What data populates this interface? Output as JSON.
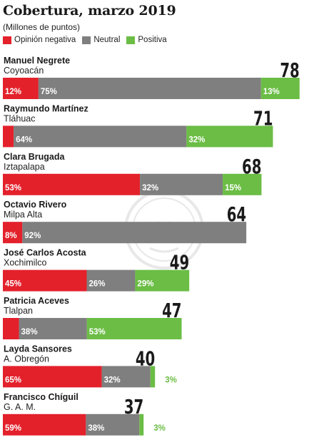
{
  "title": "Cobertura, marzo 2019",
  "subtitle": "(Millones de puntos)",
  "legend": [
    {
      "label": "Opinión negativa",
      "color": "#e3212b"
    },
    {
      "label": "Neutral",
      "color": "#7f7f7f"
    },
    {
      "label": "Positiva",
      "color": "#6bbd45"
    }
  ],
  "chart_data": {
    "type": "bar",
    "orientation": "horizontal",
    "stacked": true,
    "unit": "%",
    "categories": [
      {
        "name": "Manuel Negrete",
        "place": "Coyoacán",
        "total": 78
      },
      {
        "name": "Raymundo Martínez",
        "place": "Tláhuac",
        "total": 71
      },
      {
        "name": "Clara Brugada",
        "place": "Iztapalapa",
        "total": 68
      },
      {
        "name": "Octavio Rivero",
        "place": "Milpa Alta",
        "total": 64
      },
      {
        "name": "José Carlos Acosta",
        "place": "Xochimilco",
        "total": 49
      },
      {
        "name": "Patricia Aceves",
        "place": "Tlalpan",
        "total": 47
      },
      {
        "name": "Layda Sansores",
        "place": "A. Obregón",
        "total": 40
      },
      {
        "name": "Francisco Chíguil",
        "place": "G. A. M.",
        "total": 37
      }
    ],
    "series": [
      {
        "name": "Opinión negativa",
        "color": "#e3212b",
        "values": [
          12,
          4,
          53,
          8,
          45,
          9,
          65,
          59
        ]
      },
      {
        "name": "Neutral",
        "color": "#7f7f7f",
        "values": [
          75,
          64,
          32,
          92,
          26,
          38,
          32,
          38
        ]
      },
      {
        "name": "Positiva",
        "color": "#6bbd45",
        "values": [
          13,
          32,
          15,
          0,
          29,
          53,
          3,
          3
        ]
      }
    ]
  }
}
